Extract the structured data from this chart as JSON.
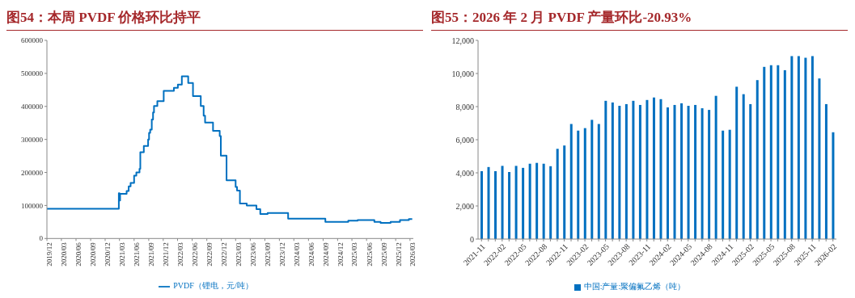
{
  "chart_data": [
    {
      "type": "step",
      "title": "图54：本周 PVDF 价格环比持平",
      "legend": "bottom",
      "grid": false,
      "marker": "none",
      "line_style": "solid",
      "series": [
        {
          "name": "PVDF（锂电，元/吨）",
          "color": "#0070c0",
          "x": [
            "2019-12-01",
            "2021-02-25",
            "2021-03-01",
            "2021-03-05",
            "2021-04-15",
            "2021-04-28",
            "2021-05-10",
            "2021-06-01",
            "2021-06-15",
            "2021-07-05",
            "2021-07-10",
            "2021-08-01",
            "2021-08-28",
            "2021-09-03",
            "2021-09-10",
            "2021-09-20",
            "2021-09-28",
            "2021-10-04",
            "2021-10-25",
            "2021-12-04",
            "2022-02-06",
            "2022-03-03",
            "2022-03-28",
            "2022-05-07",
            "2022-06-06",
            "2022-07-25",
            "2022-08-12",
            "2022-08-21",
            "2022-10-10",
            "2022-11-21",
            "2022-11-28",
            "2023-01-03",
            "2023-03-01",
            "2023-03-10",
            "2023-03-28",
            "2023-05-10",
            "2023-07-10",
            "2023-08-03",
            "2023-09-18",
            "2024-01-25",
            "2024-09-15",
            "2025-02-06",
            "2025-04-06",
            "2025-07-20",
            "2025-08-28",
            "2025-10-30",
            "2025-12-28",
            "2026-02-22",
            "2026-03-15"
          ],
          "values": [
            90000,
            137000,
            115000,
            135000,
            144000,
            158000,
            168000,
            190000,
            200000,
            211000,
            261000,
            280000,
            300000,
            320000,
            330000,
            360000,
            382000,
            401000,
            416000,
            447000,
            456000,
            466000,
            491000,
            471000,
            431000,
            401000,
            372000,
            351000,
            326000,
            310000,
            251000,
            176000,
            156000,
            145000,
            106000,
            100000,
            89000,
            74000,
            77000,
            60000,
            50000,
            54000,
            56000,
            50000,
            47000,
            50000,
            56000,
            59000,
            59000
          ]
        }
      ],
      "xlim": [
        "2019-12-01",
        "2026-03-22"
      ],
      "xticks": [
        {
          "value": "2019-12",
          "label": "2019/12"
        },
        {
          "value": "2020-03",
          "label": "2020/03"
        },
        {
          "value": "2020-06",
          "label": "2020/06"
        },
        {
          "value": "2020-09",
          "label": "2020/09"
        },
        {
          "value": "2020-12",
          "label": "2020/12"
        },
        {
          "value": "2021-03",
          "label": "2021/03"
        },
        {
          "value": "2021-06",
          "label": "2021/06"
        },
        {
          "value": "2021-09",
          "label": "2021/09"
        },
        {
          "value": "2021-12",
          "label": "2021/12"
        },
        {
          "value": "2022-03",
          "label": "2022/03"
        },
        {
          "value": "2022-06",
          "label": "2022/06"
        },
        {
          "value": "2022-09",
          "label": "2022/09"
        },
        {
          "value": "2022-12",
          "label": "2022/12"
        },
        {
          "value": "2023-03",
          "label": "2023/03"
        },
        {
          "value": "2023-06",
          "label": "2023/06"
        },
        {
          "value": "2023-09",
          "label": "2023/09"
        },
        {
          "value": "2023-12",
          "label": "2023/12"
        },
        {
          "value": "2024-03",
          "label": "2024/03"
        },
        {
          "value": "2024-06",
          "label": "2024/06"
        },
        {
          "value": "2024-09",
          "label": "2024/09"
        },
        {
          "value": "2024-12",
          "label": "2024/12"
        },
        {
          "value": "2025-03",
          "label": "2025/03"
        },
        {
          "value": "2025-06",
          "label": "2025/06"
        },
        {
          "value": "2025-09",
          "label": "2025/09"
        },
        {
          "value": "2025-12",
          "label": "2025/12"
        },
        {
          "value": "2026-03",
          "label": "2026/03"
        }
      ],
      "ylim": [
        0,
        600000
      ],
      "yticks": [
        0,
        100000,
        200000,
        300000,
        400000,
        500000,
        600000
      ]
    },
    {
      "type": "bar",
      "title": "图55：2026 年 2 月 PVDF 产量环比-20.93%",
      "legend": "bottom",
      "grid": false,
      "categories": [
        "2021-11",
        null,
        null,
        "2022-02",
        null,
        null,
        "2022-05",
        null,
        null,
        "2022-08",
        null,
        null,
        "2022-11",
        null,
        null,
        "2023-02",
        null,
        null,
        "2023-05",
        null,
        null,
        "2023-08",
        null,
        null,
        "2023-11",
        null,
        null,
        "2024-02",
        null,
        null,
        "2024-05",
        null,
        null,
        "2024-08",
        null,
        null,
        "2024-11",
        null,
        null,
        "2025-02",
        null,
        null,
        "2025-05",
        null,
        null,
        "2025-08",
        null,
        null,
        "2025-11",
        null,
        null,
        "2026-02"
      ],
      "series": [
        {
          "name": "中国:产量:聚偏氟乙烯（吨）",
          "color": "#0070c0",
          "values": [
            4100,
            4350,
            4100,
            4420,
            4050,
            4420,
            4300,
            4550,
            4600,
            4550,
            4400,
            5450,
            5650,
            6950,
            6550,
            6700,
            7200,
            6950,
            8350,
            8250,
            8050,
            8150,
            8350,
            8100,
            8400,
            8550,
            8450,
            7950,
            8100,
            8200,
            8050,
            8100,
            7900,
            7800,
            8650,
            6550,
            6600,
            9200,
            8750,
            8150,
            9600,
            10400,
            10500,
            10500,
            10200,
            11050,
            11050,
            10950,
            11050,
            9700,
            8150,
            6450
          ]
        }
      ],
      "ylim": [
        0,
        12000
      ],
      "yticks": [
        {
          "value": 0,
          "label": "0"
        },
        {
          "value": 2000,
          "label": "2,000"
        },
        {
          "value": 4000,
          "label": "4,000"
        },
        {
          "value": 6000,
          "label": "6,000"
        },
        {
          "value": 8000,
          "label": "8,000"
        },
        {
          "value": 10000,
          "label": "10,000"
        },
        {
          "value": 12000,
          "label": "12,000"
        }
      ]
    }
  ]
}
